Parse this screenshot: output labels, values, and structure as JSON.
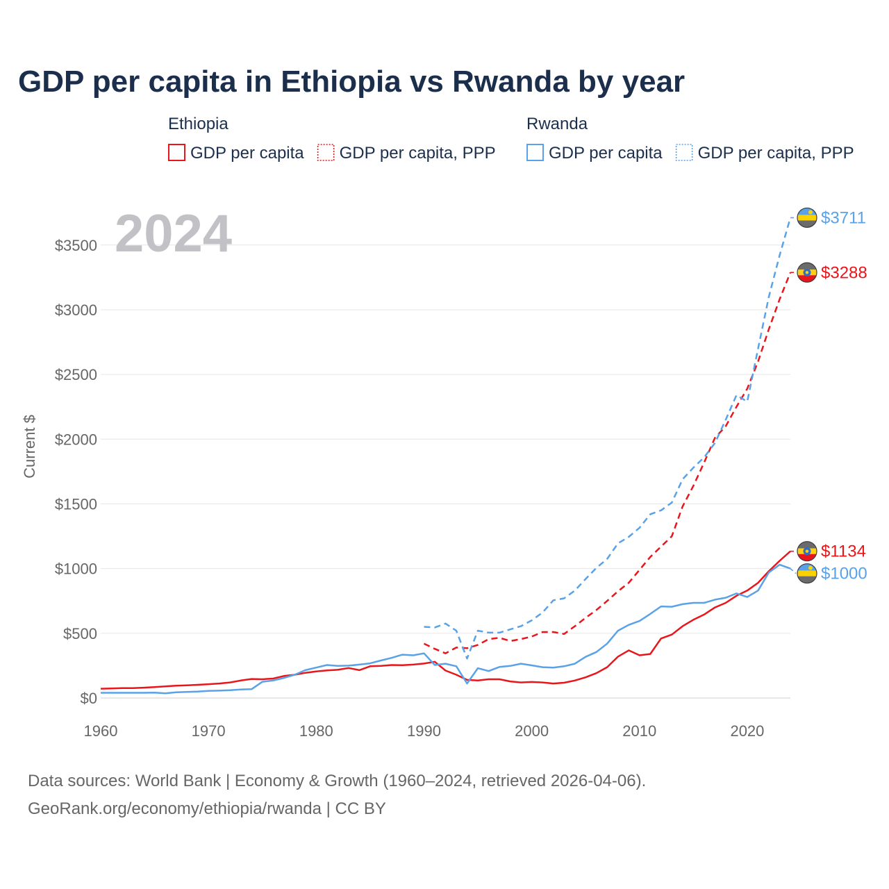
{
  "chart_data": {
    "type": "line",
    "title": "GDP per capita in Ethiopia vs Rwanda by year",
    "ylabel": "Current $",
    "xlabel": "",
    "xlim": [
      1960,
      2024
    ],
    "ylim": [
      0,
      3711
    ],
    "year_label": "2024",
    "x_ticks": [
      1960,
      1970,
      1980,
      1990,
      2000,
      2010,
      2020
    ],
    "x_tick_labels": [
      "1960",
      "1970",
      "1980",
      "1990",
      "2000",
      "2010",
      "2020"
    ],
    "y_ticks": [
      0,
      500,
      1000,
      1500,
      2000,
      2500,
      3000,
      3500
    ],
    "y_tick_labels": [
      "$0",
      "$500",
      "$1000",
      "$1500",
      "$2000",
      "$2500",
      "$3000",
      "$3500"
    ],
    "legend": {
      "groups": [
        {
          "name": "Ethiopia",
          "items": [
            {
              "label": "GDP per capita",
              "style": "solid",
              "color": "#e8161b"
            },
            {
              "label": "GDP per capita, PPP",
              "style": "dotted",
              "color": "#e8161b"
            }
          ]
        },
        {
          "name": "Rwanda",
          "items": [
            {
              "label": "GDP per capita",
              "style": "solid",
              "color": "#5aa2e8"
            },
            {
              "label": "GDP per capita, PPP",
              "style": "dotted",
              "color": "#5aa2e8"
            }
          ]
        }
      ]
    },
    "series": [
      {
        "name": "Ethiopia GDP per capita",
        "country": "Ethiopia",
        "color": "#e8161b",
        "dash": "solid",
        "end_label": "$1134",
        "flag": "ethiopia",
        "points": [
          [
            1960,
            72
          ],
          [
            1961,
            74
          ],
          [
            1962,
            76
          ],
          [
            1963,
            77
          ],
          [
            1964,
            80
          ],
          [
            1965,
            85
          ],
          [
            1966,
            90
          ],
          [
            1967,
            95
          ],
          [
            1968,
            98
          ],
          [
            1969,
            102
          ],
          [
            1970,
            107
          ],
          [
            1971,
            112
          ],
          [
            1972,
            120
          ],
          [
            1973,
            135
          ],
          [
            1974,
            147
          ],
          [
            1975,
            145
          ],
          [
            1976,
            150
          ],
          [
            1977,
            170
          ],
          [
            1978,
            180
          ],
          [
            1979,
            195
          ],
          [
            1980,
            205
          ],
          [
            1981,
            213
          ],
          [
            1982,
            218
          ],
          [
            1983,
            232
          ],
          [
            1984,
            215
          ],
          [
            1985,
            245
          ],
          [
            1986,
            248
          ],
          [
            1987,
            255
          ],
          [
            1988,
            254
          ],
          [
            1989,
            258
          ],
          [
            1990,
            266
          ],
          [
            1991,
            280
          ],
          [
            1992,
            212
          ],
          [
            1993,
            180
          ],
          [
            1994,
            140
          ],
          [
            1995,
            135
          ],
          [
            1996,
            145
          ],
          [
            1997,
            145
          ],
          [
            1998,
            128
          ],
          [
            1999,
            120
          ],
          [
            2000,
            124
          ],
          [
            2001,
            120
          ],
          [
            2002,
            112
          ],
          [
            2003,
            118
          ],
          [
            2004,
            135
          ],
          [
            2005,
            160
          ],
          [
            2006,
            192
          ],
          [
            2007,
            238
          ],
          [
            2008,
            320
          ],
          [
            2009,
            368
          ],
          [
            2010,
            330
          ],
          [
            2011,
            340
          ],
          [
            2012,
            460
          ],
          [
            2013,
            490
          ],
          [
            2014,
            555
          ],
          [
            2015,
            605
          ],
          [
            2016,
            645
          ],
          [
            2017,
            700
          ],
          [
            2018,
            735
          ],
          [
            2019,
            790
          ],
          [
            2020,
            830
          ],
          [
            2021,
            890
          ],
          [
            2022,
            980
          ],
          [
            2023,
            1060
          ],
          [
            2024,
            1134
          ]
        ]
      },
      {
        "name": "Ethiopia GDP per capita, PPP",
        "country": "Ethiopia",
        "color": "#e8161b",
        "dash": "dashed",
        "end_label": "$3288",
        "flag": "ethiopia",
        "points": [
          [
            1990,
            420
          ],
          [
            1991,
            380
          ],
          [
            1992,
            345
          ],
          [
            1993,
            390
          ],
          [
            1994,
            385
          ],
          [
            1995,
            410
          ],
          [
            1996,
            455
          ],
          [
            1997,
            465
          ],
          [
            1998,
            440
          ],
          [
            1999,
            455
          ],
          [
            2000,
            475
          ],
          [
            2001,
            510
          ],
          [
            2002,
            510
          ],
          [
            2003,
            495
          ],
          [
            2004,
            555
          ],
          [
            2005,
            620
          ],
          [
            2006,
            680
          ],
          [
            2007,
            750
          ],
          [
            2008,
            825
          ],
          [
            2009,
            890
          ],
          [
            2010,
            990
          ],
          [
            2011,
            1090
          ],
          [
            2012,
            1170
          ],
          [
            2013,
            1250
          ],
          [
            2014,
            1480
          ],
          [
            2015,
            1640
          ],
          [
            2016,
            1820
          ],
          [
            2017,
            2010
          ],
          [
            2018,
            2100
          ],
          [
            2019,
            2250
          ],
          [
            2020,
            2390
          ],
          [
            2021,
            2600
          ],
          [
            2022,
            2850
          ],
          [
            2023,
            3080
          ],
          [
            2024,
            3288
          ]
        ]
      },
      {
        "name": "Rwanda GDP per capita",
        "country": "Rwanda",
        "color": "#5aa2e8",
        "dash": "solid",
        "end_label": "$1000",
        "flag": "rwanda",
        "points": [
          [
            1960,
            40
          ],
          [
            1961,
            40
          ],
          [
            1962,
            40
          ],
          [
            1963,
            40
          ],
          [
            1964,
            40
          ],
          [
            1965,
            42
          ],
          [
            1966,
            36
          ],
          [
            1967,
            44
          ],
          [
            1968,
            47
          ],
          [
            1969,
            50
          ],
          [
            1970,
            55
          ],
          [
            1971,
            57
          ],
          [
            1972,
            60
          ],
          [
            1973,
            66
          ],
          [
            1974,
            68
          ],
          [
            1975,
            125
          ],
          [
            1976,
            135
          ],
          [
            1977,
            155
          ],
          [
            1978,
            180
          ],
          [
            1979,
            215
          ],
          [
            1980,
            235
          ],
          [
            1981,
            255
          ],
          [
            1982,
            248
          ],
          [
            1983,
            250
          ],
          [
            1984,
            258
          ],
          [
            1985,
            268
          ],
          [
            1986,
            290
          ],
          [
            1987,
            310
          ],
          [
            1988,
            335
          ],
          [
            1989,
            330
          ],
          [
            1990,
            345
          ],
          [
            1991,
            255
          ],
          [
            1992,
            265
          ],
          [
            1993,
            245
          ],
          [
            1994,
            112
          ],
          [
            1995,
            230
          ],
          [
            1996,
            208
          ],
          [
            1997,
            240
          ],
          [
            1998,
            248
          ],
          [
            1999,
            265
          ],
          [
            2000,
            252
          ],
          [
            2001,
            238
          ],
          [
            2002,
            235
          ],
          [
            2003,
            245
          ],
          [
            2004,
            265
          ],
          [
            2005,
            318
          ],
          [
            2006,
            355
          ],
          [
            2007,
            420
          ],
          [
            2008,
            520
          ],
          [
            2009,
            565
          ],
          [
            2010,
            595
          ],
          [
            2011,
            650
          ],
          [
            2012,
            708
          ],
          [
            2013,
            705
          ],
          [
            2014,
            725
          ],
          [
            2015,
            735
          ],
          [
            2016,
            735
          ],
          [
            2017,
            760
          ],
          [
            2018,
            775
          ],
          [
            2019,
            808
          ],
          [
            2020,
            780
          ],
          [
            2021,
            830
          ],
          [
            2022,
            970
          ],
          [
            2023,
            1030
          ],
          [
            2024,
            1000
          ]
        ]
      },
      {
        "name": "Rwanda GDP per capita, PPP",
        "country": "Rwanda",
        "color": "#5aa2e8",
        "dash": "dashed",
        "end_label": "$3711",
        "flag": "rwanda",
        "points": [
          [
            1990,
            550
          ],
          [
            1991,
            545
          ],
          [
            1992,
            575
          ],
          [
            1993,
            520
          ],
          [
            1994,
            305
          ],
          [
            1995,
            520
          ],
          [
            1996,
            505
          ],
          [
            1997,
            505
          ],
          [
            1998,
            530
          ],
          [
            1999,
            555
          ],
          [
            2000,
            600
          ],
          [
            2001,
            660
          ],
          [
            2002,
            755
          ],
          [
            2003,
            770
          ],
          [
            2004,
            830
          ],
          [
            2005,
            920
          ],
          [
            2006,
            1005
          ],
          [
            2007,
            1075
          ],
          [
            2008,
            1195
          ],
          [
            2009,
            1245
          ],
          [
            2010,
            1315
          ],
          [
            2011,
            1420
          ],
          [
            2012,
            1450
          ],
          [
            2013,
            1510
          ],
          [
            2014,
            1690
          ],
          [
            2015,
            1780
          ],
          [
            2016,
            1860
          ],
          [
            2017,
            1970
          ],
          [
            2018,
            2150
          ],
          [
            2019,
            2340
          ],
          [
            2020,
            2290
          ],
          [
            2021,
            2700
          ],
          [
            2022,
            3100
          ],
          [
            2023,
            3420
          ],
          [
            2024,
            3711
          ]
        ]
      }
    ]
  },
  "footer": {
    "line1": "Data sources: World Bank | Economy & Growth (1960–2024, retrieved 2026-04-06).",
    "line2": "GeoRank.org/economy/ethiopia/rwanda | CC BY"
  },
  "flags": {
    "ethiopia": [
      "#6b6b6b",
      "#fcd116",
      "#e8161b"
    ],
    "rwanda": [
      "#5aa2e8",
      "#fad201",
      "#6b6b6b"
    ]
  }
}
